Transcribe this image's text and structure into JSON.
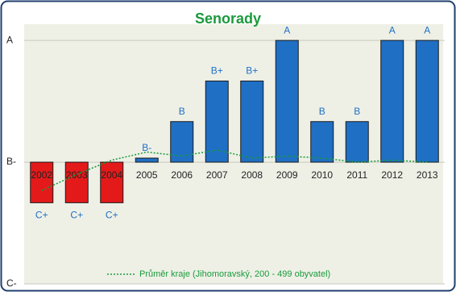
{
  "chart_data": {
    "type": "bar",
    "title": "Senorady",
    "categories": [
      "2002",
      "2003",
      "2004",
      "2005",
      "2006",
      "2007",
      "2008",
      "2009",
      "2010",
      "2011",
      "2012",
      "2013"
    ],
    "values": [
      -1,
      -1,
      -1,
      0.1,
      1,
      2,
      2,
      3,
      1,
      1,
      3,
      3
    ],
    "value_labels": [
      "C+",
      "C+",
      "C+",
      "B-",
      "B",
      "B+",
      "B+",
      "A",
      "B",
      "B",
      "A",
      "A"
    ],
    "color": "#1f6fc4",
    "negative_color": "#e41a1a",
    "series": [
      {
        "name": "Průměr kraje (Jihomoravský, 200 - 499 obyvatel)",
        "color": "#1a9a3c",
        "values": [
          -0.7,
          -0.3,
          0.05,
          0.25,
          0.15,
          0.3,
          0.1,
          0.15,
          0.1,
          0,
          0.05,
          0
        ]
      }
    ],
    "ylim": [
      -3,
      3.4
    ],
    "yticks": [
      {
        "value": 3,
        "label": "A"
      },
      {
        "value": 0,
        "label": "B-"
      },
      {
        "value": -3,
        "label": "C-"
      }
    ],
    "grid": true
  }
}
